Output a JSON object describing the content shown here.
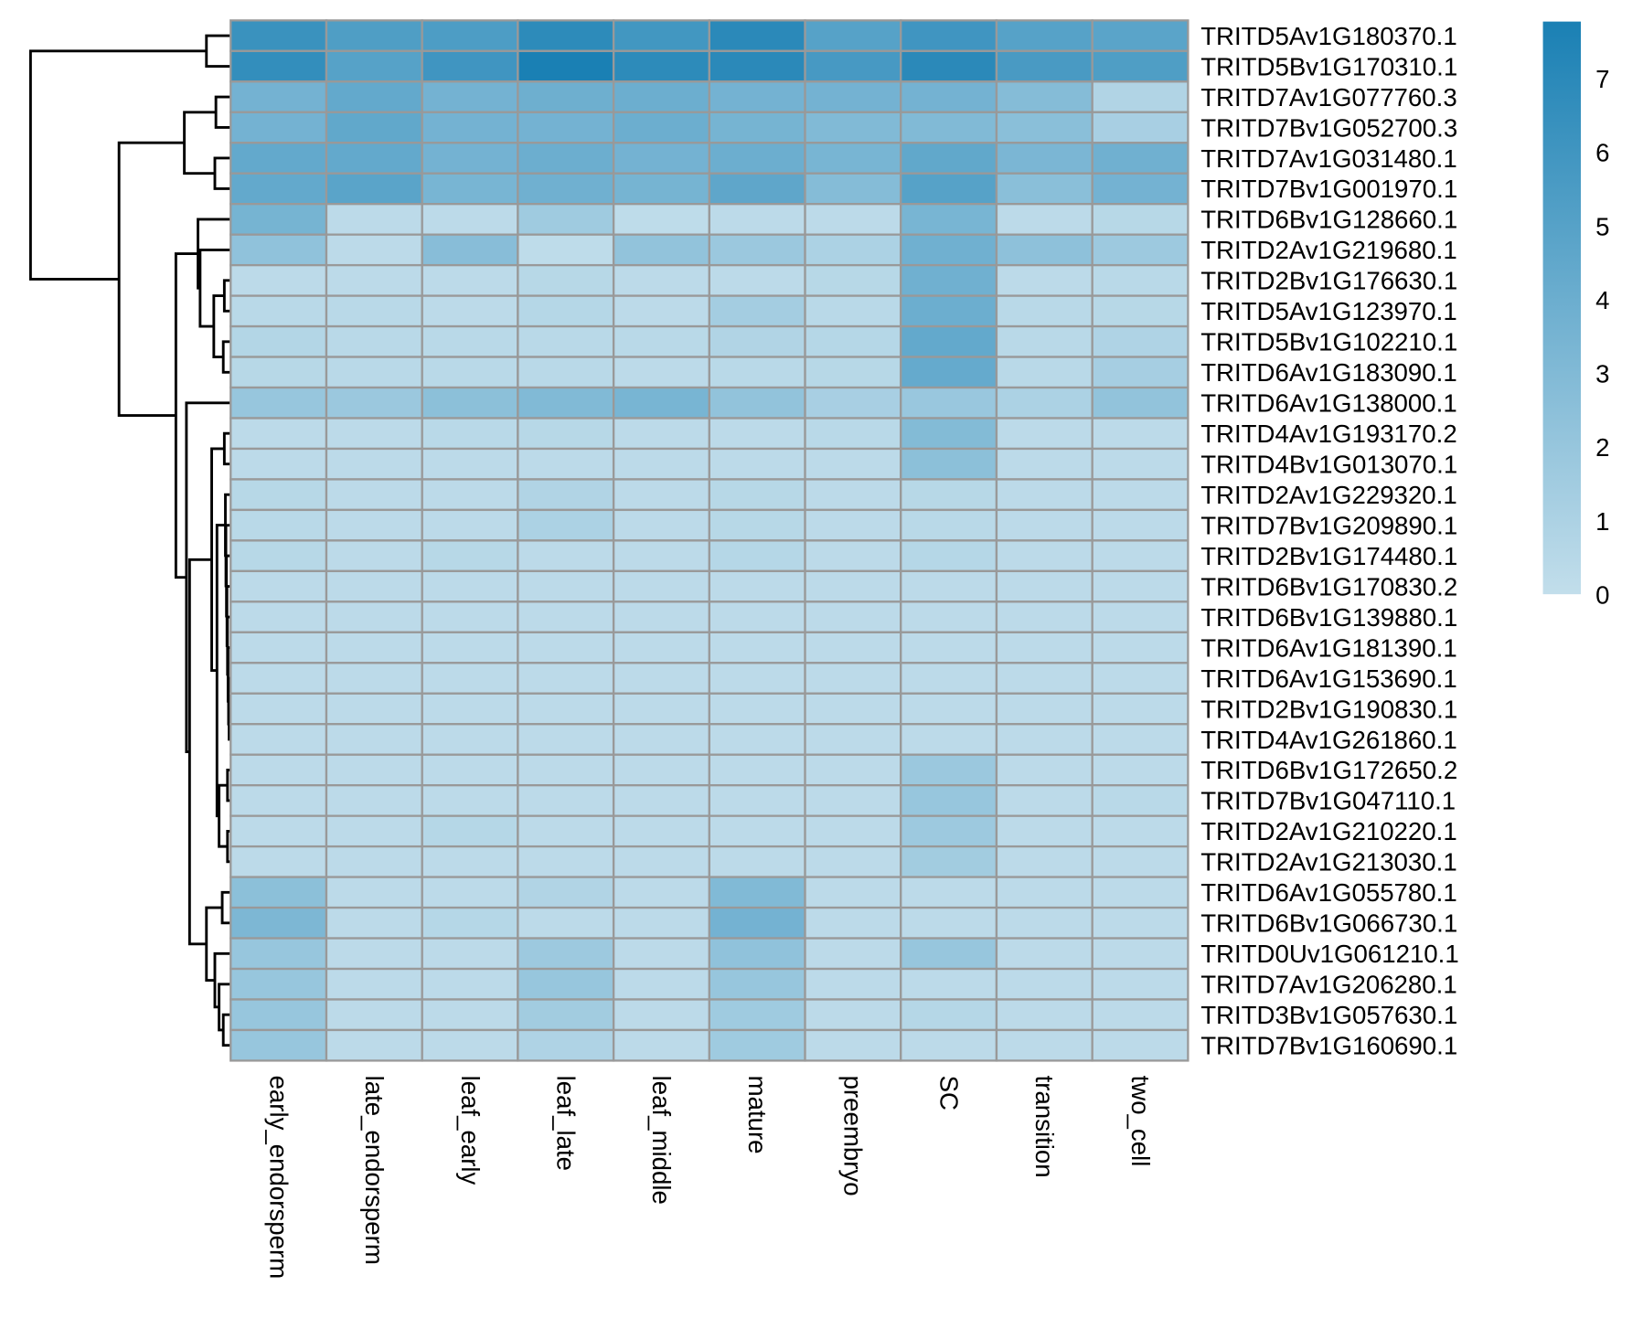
{
  "chart_data": {
    "type": "heatmap",
    "title": "",
    "columns": [
      "early_endorsperm",
      "late_endorsperm",
      "leaf_early",
      "leaf_late",
      "leaf_middle",
      "mature",
      "preembryo",
      "SC",
      "transition",
      "two_cell"
    ],
    "rows": [
      "TRITD5Av1G180370.1",
      "TRITD5Bv1G170310.1",
      "TRITD7Av1G077760.3",
      "TRITD7Bv1G052700.3",
      "TRITD7Av1G031480.1",
      "TRITD7Bv1G001970.1",
      "TRITD6Bv1G128660.1",
      "TRITD2Av1G219680.1",
      "TRITD2Bv1G176630.1",
      "TRITD5Av1G123970.1",
      "TRITD5Bv1G102210.1",
      "TRITD6Av1G183090.1",
      "TRITD6Av1G138000.1",
      "TRITD4Av1G193170.2",
      "TRITD4Bv1G013070.1",
      "TRITD2Av1G229320.1",
      "TRITD7Bv1G209890.1",
      "TRITD2Bv1G174480.1",
      "TRITD6Bv1G170830.2",
      "TRITD6Bv1G139880.1",
      "TRITD6Av1G181390.1",
      "TRITD6Av1G153690.1",
      "TRITD2Bv1G190830.1",
      "TRITD4Av1G261860.1",
      "TRITD6Bv1G172650.2",
      "TRITD7Bv1G047110.1",
      "TRITD2Av1G210220.1",
      "TRITD2Av1G213030.1",
      "TRITD6Av1G055780.1",
      "TRITD6Bv1G066730.1",
      "TRITD0Uv1G061210.1",
      "TRITD7Av1G206280.1",
      "TRITD3Bv1G057630.1",
      "TRITD7Bv1G160690.1"
    ],
    "values": [
      [
        6.3,
        5.3,
        5.4,
        6.9,
        5.9,
        7.0,
        5.0,
        6.0,
        5.0,
        4.8
      ],
      [
        6.6,
        5.0,
        6.0,
        7.8,
        6.9,
        7.0,
        5.7,
        7.0,
        5.6,
        5.3
      ],
      [
        3.6,
        4.4,
        3.6,
        3.9,
        4.0,
        3.6,
        3.6,
        3.6,
        2.8,
        0.8
      ],
      [
        3.6,
        4.5,
        3.6,
        3.6,
        4.0,
        3.5,
        3.0,
        3.0,
        2.6,
        1.2
      ],
      [
        4.4,
        4.4,
        3.6,
        4.0,
        3.6,
        4.0,
        3.4,
        4.5,
        3.3,
        3.8
      ],
      [
        4.4,
        4.8,
        3.4,
        3.8,
        3.5,
        4.6,
        2.8,
        5.0,
        2.6,
        3.6
      ],
      [
        3.5,
        0.3,
        0.3,
        1.6,
        0.2,
        0.3,
        0.3,
        3.4,
        0.3,
        0.5
      ],
      [
        2.3,
        0.3,
        2.7,
        0.2,
        2.2,
        1.8,
        1.0,
        3.8,
        2.4,
        1.7
      ],
      [
        0.3,
        0.3,
        0.3,
        0.5,
        0.3,
        0.3,
        0.5,
        3.8,
        0.3,
        0.4
      ],
      [
        0.4,
        0.4,
        0.3,
        0.6,
        0.3,
        1.4,
        0.4,
        4.0,
        0.4,
        0.5
      ],
      [
        0.7,
        0.4,
        0.4,
        0.4,
        0.4,
        0.8,
        0.6,
        4.4,
        0.4,
        0.9
      ],
      [
        0.5,
        0.4,
        0.4,
        0.4,
        0.3,
        0.4,
        0.5,
        4.3,
        0.4,
        1.3
      ],
      [
        2.0,
        1.8,
        2.5,
        3.0,
        3.4,
        2.2,
        1.2,
        1.9,
        1.0,
        2.2
      ],
      [
        0.3,
        0.3,
        0.4,
        0.5,
        0.3,
        0.3,
        0.4,
        2.9,
        0.3,
        0.3
      ],
      [
        0.3,
        0.3,
        0.3,
        0.3,
        0.3,
        0.3,
        0.3,
        2.5,
        0.3,
        0.3
      ],
      [
        0.5,
        0.3,
        0.3,
        0.8,
        0.3,
        0.5,
        0.3,
        0.5,
        0.3,
        0.3
      ],
      [
        0.4,
        0.3,
        0.3,
        1.0,
        0.3,
        0.5,
        0.3,
        0.4,
        0.3,
        0.3
      ],
      [
        0.5,
        0.3,
        0.5,
        0.3,
        0.3,
        0.6,
        0.3,
        0.6,
        0.3,
        0.3
      ],
      [
        0.3,
        0.3,
        0.3,
        0.3,
        0.3,
        0.3,
        0.3,
        0.3,
        0.3,
        0.3
      ],
      [
        0.3,
        0.3,
        0.3,
        0.3,
        0.3,
        0.3,
        0.3,
        0.3,
        0.3,
        0.3
      ],
      [
        0.3,
        0.3,
        0.3,
        0.3,
        0.3,
        0.3,
        0.3,
        0.3,
        0.3,
        0.3
      ],
      [
        0.3,
        0.3,
        0.3,
        0.3,
        0.3,
        0.3,
        0.3,
        0.3,
        0.3,
        0.3
      ],
      [
        0.3,
        0.3,
        0.3,
        0.3,
        0.3,
        0.3,
        0.3,
        0.3,
        0.3,
        0.3
      ],
      [
        0.3,
        0.3,
        0.3,
        0.3,
        0.3,
        0.3,
        0.3,
        0.3,
        0.3,
        0.3
      ],
      [
        0.3,
        0.3,
        0.3,
        0.3,
        0.3,
        0.3,
        0.3,
        1.8,
        0.3,
        0.3
      ],
      [
        0.3,
        0.3,
        0.3,
        0.3,
        0.3,
        0.3,
        0.3,
        2.0,
        0.3,
        0.4
      ],
      [
        0.3,
        0.3,
        0.6,
        0.3,
        0.3,
        0.3,
        0.3,
        1.7,
        0.3,
        0.3
      ],
      [
        0.3,
        0.3,
        0.3,
        0.3,
        0.3,
        0.3,
        0.3,
        1.5,
        0.3,
        0.3
      ],
      [
        2.5,
        0.3,
        0.3,
        0.8,
        0.3,
        3.0,
        0.3,
        0.3,
        0.3,
        0.3
      ],
      [
        3.2,
        0.3,
        0.6,
        0.3,
        0.3,
        3.6,
        0.3,
        0.3,
        0.3,
        0.3
      ],
      [
        2.0,
        0.3,
        0.3,
        1.7,
        0.3,
        2.3,
        0.3,
        2.0,
        0.3,
        0.3
      ],
      [
        2.0,
        0.3,
        0.3,
        2.0,
        0.3,
        2.0,
        0.3,
        0.3,
        0.3,
        0.3
      ],
      [
        2.0,
        0.3,
        0.3,
        1.5,
        0.3,
        1.6,
        0.3,
        0.6,
        0.3,
        0.3
      ],
      [
        2.0,
        0.3,
        0.3,
        0.9,
        0.3,
        1.6,
        0.3,
        0.3,
        0.3,
        0.3
      ]
    ],
    "color_scale": {
      "low": "#c2deeb",
      "high": "#1a80b4",
      "min": 0,
      "max": 7.77
    },
    "legend": {
      "placement": "right",
      "ticks": [
        0,
        1,
        2,
        3,
        4,
        5,
        6,
        7
      ]
    },
    "row_dendrogram": true,
    "cell_border_color": "#999999"
  }
}
